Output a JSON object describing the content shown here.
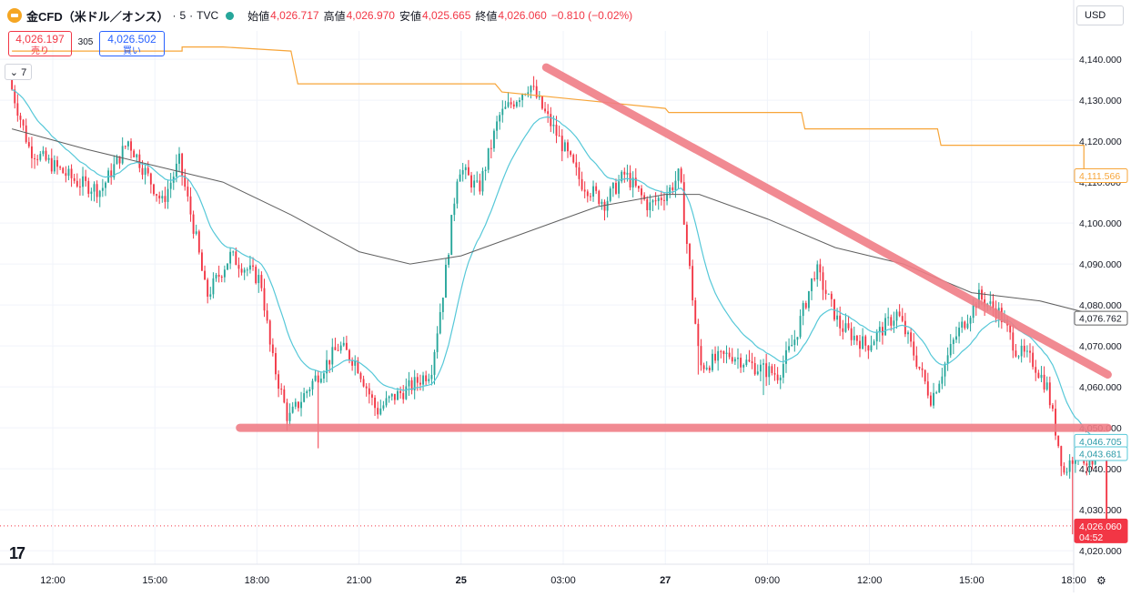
{
  "header": {
    "symbol": "金CFD（米ドル／オンス）",
    "interval": "5",
    "source": "TVC",
    "open_label": "始値",
    "open": "4,026.717",
    "high_label": "高値",
    "high": "4,026.970",
    "low_label": "安値",
    "low": "4,025.665",
    "close_label": "終値",
    "close": "4,026.060",
    "change": "−0.810 (−0.02%)"
  },
  "sell": {
    "price": "4,026.197",
    "label": "売り"
  },
  "buy": {
    "price": "4,026.502",
    "label": "買い"
  },
  "spread": "305",
  "indicators_label": "7",
  "currency": "USD",
  "price_labels": {
    "ma_orange": "4,111.566",
    "ma_gray": "4,076.762",
    "ma_cyan1": "4,046.705",
    "ma_cyan2": "4,043.681",
    "last": "4,026.060",
    "countdown": "04:52"
  },
  "colors": {
    "up": "#26a69a",
    "down": "#f23645",
    "cyan": "#56c8d8",
    "gray": "#606060",
    "orange": "#f7a539",
    "trend": "#ef7d86"
  },
  "chart_data": {
    "type": "candlestick",
    "interval_minutes": 5,
    "ylim": [
      4015,
      4145
    ],
    "y_ticks": [
      "4,020.000",
      "4,030.000",
      "4,040.000",
      "4,050.000",
      "4,060.000",
      "4,070.000",
      "4,080.000",
      "4,090.000",
      "4,100.000",
      "4,110.000",
      "4,120.000",
      "4,130.000",
      "4,140.000"
    ],
    "x_ticks": [
      "12:00",
      "15:00",
      "18:00",
      "21:00",
      "25",
      "03:00",
      "27",
      "09:00",
      "12:00",
      "15:00",
      "18:00"
    ],
    "x_tick_hours": [
      0,
      3,
      6,
      9,
      12,
      15,
      18,
      21,
      24,
      27,
      30
    ],
    "start_hour": -1.2,
    "end_hour": 31,
    "anchors": [
      [
        -1.2,
        4135
      ],
      [
        -0.6,
        4118
      ],
      [
        0.8,
        4110
      ],
      [
        1.5,
        4108
      ],
      [
        2.3,
        4120
      ],
      [
        3.3,
        4105
      ],
      [
        3.8,
        4115
      ],
      [
        4.3,
        4096
      ],
      [
        4.6,
        4082
      ],
      [
        5.3,
        4092
      ],
      [
        6.2,
        4086
      ],
      [
        6.5,
        4068
      ],
      [
        7.0,
        4052
      ],
      [
        7.7,
        4061
      ],
      [
        8.5,
        4070
      ],
      [
        9.0,
        4066
      ],
      [
        9.6,
        4054
      ],
      [
        10.0,
        4057
      ],
      [
        10.6,
        4060
      ],
      [
        11.2,
        4064
      ],
      [
        11.6,
        4086
      ],
      [
        12.0,
        4114
      ],
      [
        12.6,
        4108
      ],
      [
        13.2,
        4126
      ],
      [
        14.1,
        4134
      ],
      [
        14.4,
        4129
      ],
      [
        15.0,
        4120
      ],
      [
        15.6,
        4110
      ],
      [
        16.3,
        4105
      ],
      [
        16.9,
        4112
      ],
      [
        17.6,
        4104
      ],
      [
        18.2,
        4108
      ],
      [
        18.5,
        4112
      ],
      [
        19.1,
        4065
      ],
      [
        20.0,
        4068
      ],
      [
        20.7,
        4065
      ],
      [
        21.4,
        4063
      ],
      [
        21.9,
        4072
      ],
      [
        22.5,
        4089
      ],
      [
        23.2,
        4075
      ],
      [
        24.0,
        4070
      ],
      [
        24.9,
        4078
      ],
      [
        25.3,
        4070
      ],
      [
        25.9,
        4057
      ],
      [
        26.6,
        4072
      ],
      [
        27.3,
        4082
      ],
      [
        27.9,
        4078
      ],
      [
        28.4,
        4069
      ],
      [
        28.9,
        4066
      ],
      [
        29.3,
        4060
      ],
      [
        29.8,
        4039
      ],
      [
        30.2,
        4045
      ],
      [
        30.6,
        4040
      ],
      [
        31.0,
        4043
      ]
    ],
    "moving_averages": [
      {
        "color": "#56c8d8",
        "last": 4046.705
      },
      {
        "color": "#606060",
        "last": 4076.762
      },
      {
        "color": "#f7a539",
        "last": 4111.566
      }
    ],
    "orange_steps": [
      [
        -1.2,
        4142
      ],
      [
        3.8,
        4142
      ],
      [
        3.8,
        4143
      ],
      [
        5.0,
        4143
      ],
      [
        7.0,
        4142
      ],
      [
        7.2,
        4134
      ],
      [
        13.0,
        4134
      ],
      [
        13.2,
        4132
      ],
      [
        18.0,
        4128
      ],
      [
        18.1,
        4127
      ],
      [
        22.0,
        4127
      ],
      [
        22.1,
        4123
      ],
      [
        26.0,
        4123
      ],
      [
        26.1,
        4119
      ],
      [
        30.3,
        4119
      ],
      [
        30.3,
        4111.566
      ],
      [
        31.0,
        4111.566
      ]
    ],
    "gray_points": [
      [
        -1.2,
        4123
      ],
      [
        1.0,
        4118
      ],
      [
        3.0,
        4114
      ],
      [
        5.0,
        4110
      ],
      [
        7.0,
        4102
      ],
      [
        9.0,
        4093
      ],
      [
        10.5,
        4090
      ],
      [
        12.0,
        4092
      ],
      [
        14.0,
        4098
      ],
      [
        16.0,
        4104
      ],
      [
        18.0,
        4107
      ],
      [
        19.0,
        4107
      ],
      [
        21.0,
        4101
      ],
      [
        23.0,
        4094
      ],
      [
        25.0,
        4090
      ],
      [
        27.0,
        4083
      ],
      [
        29.0,
        4081
      ],
      [
        31.0,
        4076.762
      ]
    ],
    "trendlines": [
      {
        "from": [
          14.5,
          4138
        ],
        "to": [
          31.0,
          4063
        ]
      },
      {
        "from": [
          5.5,
          4050
        ],
        "to": [
          31.0,
          4050
        ]
      }
    ],
    "last_price": 4026.06
  }
}
